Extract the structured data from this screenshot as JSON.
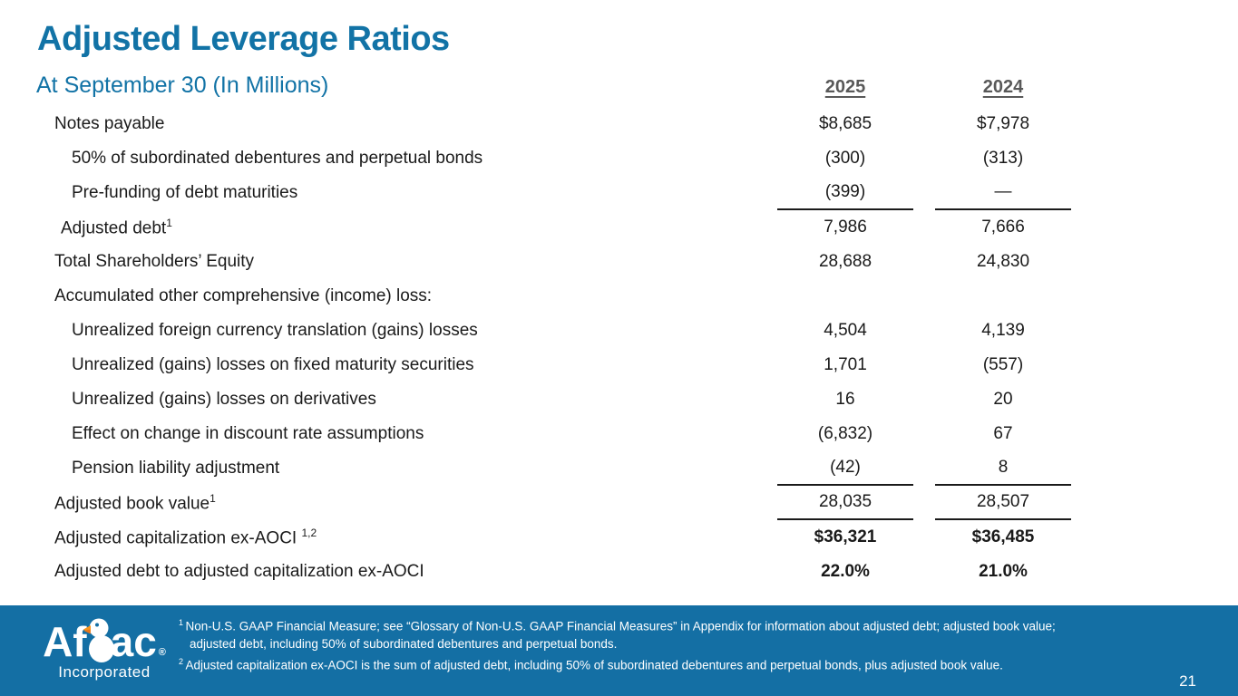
{
  "slide": {
    "title": "Adjusted Leverage Ratios",
    "subtitle": "At September 30 (In Millions)",
    "page_number": "21"
  },
  "table": {
    "columns": [
      "2025",
      "2024"
    ],
    "rows": [
      {
        "label": "Notes payable",
        "sup": "",
        "indent": "0",
        "v2025": "$8,685",
        "v2024": "$7,978",
        "bold": false,
        "rule": false
      },
      {
        "label": "50% of subordinated debentures and perpetual bonds",
        "sup": "",
        "indent": "1",
        "v2025": "(300)",
        "v2024": "(313)",
        "bold": false,
        "rule": false
      },
      {
        "label": "Pre-funding of debt maturities",
        "sup": "",
        "indent": "1",
        "v2025": "(399)",
        "v2024": "—",
        "bold": false,
        "rule": true
      },
      {
        "label": "Adjusted debt",
        "sup": "1",
        "indent": "half",
        "v2025": "7,986",
        "v2024": "7,666",
        "bold": false,
        "rule": false
      },
      {
        "label": "Total Shareholders’ Equity",
        "sup": "",
        "indent": "0",
        "v2025": "28,688",
        "v2024": "24,830",
        "bold": false,
        "rule": false
      },
      {
        "label": "Accumulated other comprehensive (income) loss:",
        "sup": "",
        "indent": "0",
        "v2025": "",
        "v2024": "",
        "bold": false,
        "rule": false
      },
      {
        "label": "Unrealized foreign currency translation (gains) losses",
        "sup": "",
        "indent": "1",
        "v2025": "4,504",
        "v2024": "4,139",
        "bold": false,
        "rule": false
      },
      {
        "label": "Unrealized (gains) losses on fixed maturity securities",
        "sup": "",
        "indent": "1",
        "v2025": "1,701",
        "v2024": "(557)",
        "bold": false,
        "rule": false
      },
      {
        "label": "Unrealized (gains) losses on derivatives",
        "sup": "",
        "indent": "1",
        "v2025": "16",
        "v2024": "20",
        "bold": false,
        "rule": false
      },
      {
        "label": "Effect on change in discount rate assumptions",
        "sup": "",
        "indent": "1",
        "v2025": "(6,832)",
        "v2024": "67",
        "bold": false,
        "rule": false
      },
      {
        "label": "Pension liability adjustment",
        "sup": "",
        "indent": "1",
        "v2025": "(42)",
        "v2024": "8",
        "bold": false,
        "rule": true
      },
      {
        "label": "Adjusted book value",
        "sup": "1",
        "indent": "0",
        "v2025": "28,035",
        "v2024": "28,507",
        "bold": false,
        "rule": true
      },
      {
        "label": "Adjusted capitalization ex-AOCI ",
        "sup": "1,2",
        "indent": "0",
        "v2025": "$36,321",
        "v2024": "$36,485",
        "bold": true,
        "rule": false
      },
      {
        "label": "Adjusted debt to adjusted capitalization ex-AOCI",
        "sup": "",
        "indent": "0",
        "v2025": "22.0%",
        "v2024": "21.0%",
        "bold": true,
        "rule": false
      }
    ]
  },
  "footnotes": [
    {
      "sup": "1",
      "text": "Non-U.S. GAAP Financial Measure; see “Glossary of Non-U.S. GAAP Financial Measures” in Appendix for information about adjusted debt; adjusted book value;",
      "cont": false
    },
    {
      "sup": "",
      "text": "adjusted debt, including 50% of subordinated debentures and perpetual bonds.",
      "cont": true
    },
    {
      "sup": "2",
      "text": "Adjusted capitalization ex-AOCI is the sum of adjusted debt, including 50% of subordinated debentures and perpetual bonds, plus adjusted book value.",
      "cont": false
    }
  ],
  "logo": {
    "brand_left": "Af",
    "brand_right": "ac",
    "registered": "®",
    "sub": "Incorporated",
    "duck_icon": "aflac-duck-icon"
  },
  "colors": {
    "accent_blue": "#1273A6",
    "band_blue": "#146FA4",
    "header_gray": "#595959",
    "text_black": "#1a1a1a",
    "duck_beak_orange": "#F7941D"
  }
}
